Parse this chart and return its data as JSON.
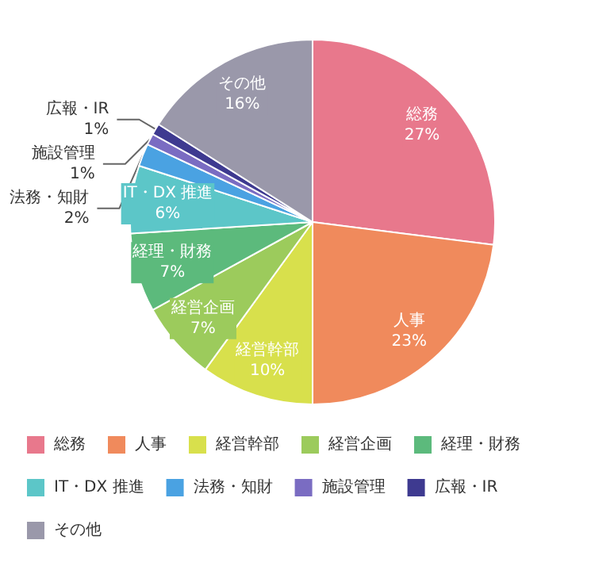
{
  "chart_data": {
    "type": "pie",
    "categories": [
      "総務",
      "人事",
      "経営幹部",
      "経営企画",
      "経理・財務",
      "IT・DX 推進",
      "法務・知財",
      "施設管理",
      "広報・IR",
      "その他"
    ],
    "values": [
      27,
      23,
      10,
      7,
      7,
      6,
      2,
      1,
      1,
      16
    ],
    "colors": [
      "#e8788c",
      "#f08a5c",
      "#d8e04c",
      "#9ccb5c",
      "#5cba7c",
      "#5cc6c8",
      "#4aa2e2",
      "#7a6cc2",
      "#3e3a90",
      "#9a98aa"
    ],
    "value_labels": [
      "27%",
      "23%",
      "10%",
      "7%",
      "7%",
      "6%",
      "2%",
      "1%",
      "1%",
      "16%"
    ],
    "legend": "bottom"
  }
}
